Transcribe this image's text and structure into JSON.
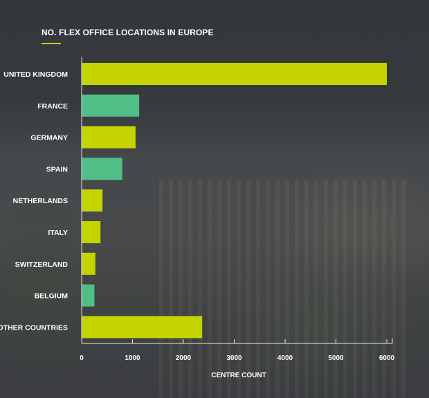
{
  "chart_data": {
    "type": "bar",
    "orientation": "horizontal",
    "title": "NO. FLEX OFFICE LOCATIONS IN EUROPE",
    "xlabel": "CENTRE COUNT",
    "ylabel": "",
    "categories": [
      "UNITED KINGDOM",
      "FRANCE",
      "GERMANY",
      "SPAIN",
      "NETHERLANDS",
      "ITALY",
      "SWITZERLAND",
      "BELGIUM",
      "OTHER COUNTRIES"
    ],
    "values": [
      6000,
      1130,
      1060,
      800,
      410,
      370,
      270,
      250,
      2370
    ],
    "bar_colors": [
      "#c3d400",
      "#4fbf87",
      "#c3d400",
      "#4fbf87",
      "#c3d400",
      "#c3d400",
      "#c3d400",
      "#4fbf87",
      "#c3d400"
    ],
    "xlim": [
      0,
      6100
    ],
    "xticks": [
      0,
      1000,
      2000,
      3000,
      4000,
      5000,
      6000
    ],
    "grid": false,
    "legend": "none",
    "colors": {
      "accent_lime": "#c3d400",
      "accent_green": "#4fbf87",
      "text": "#ffffff",
      "axis": "#e8e8e8"
    }
  }
}
